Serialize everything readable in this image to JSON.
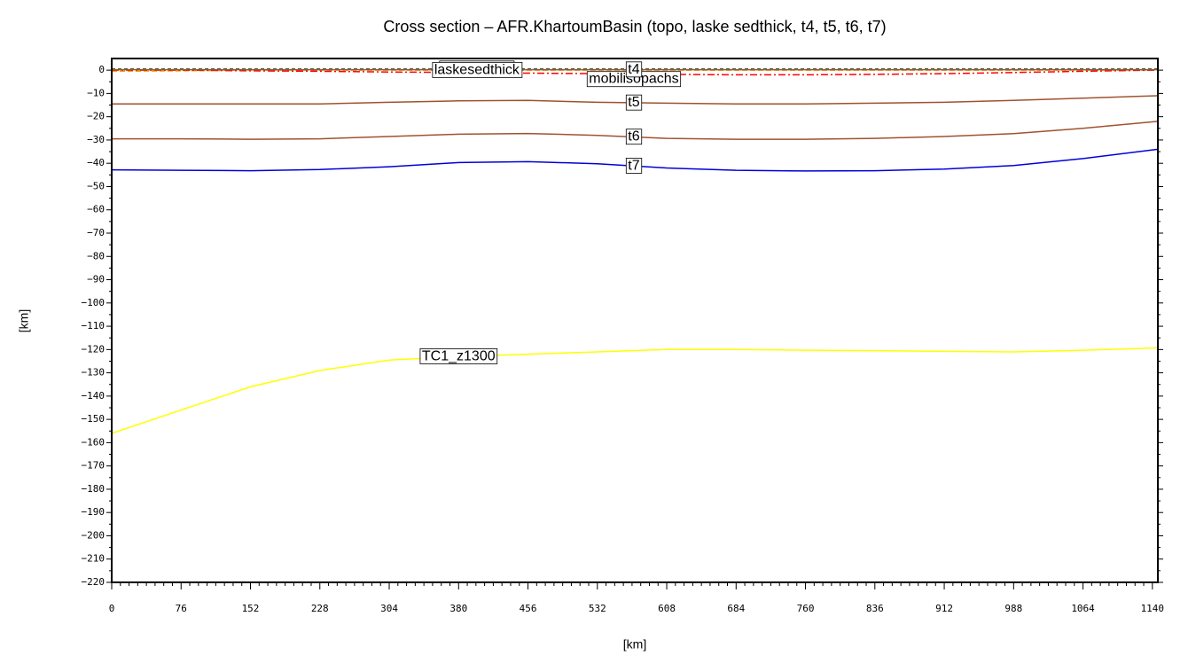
{
  "chart_data": {
    "type": "line",
    "title": "Cross section – AFR.KhartoumBasin (topo, laske sedthick, t4, t5, t6, t7)",
    "x_label": "[km]",
    "y_label": "[km]",
    "x": [
      0,
      76,
      152,
      228,
      304,
      380,
      456,
      532,
      608,
      684,
      760,
      836,
      912,
      988,
      1064,
      1146
    ],
    "series": [
      {
        "name": "topography",
        "color": "#1a7a5a",
        "dash": "4,3",
        "values": [
          0.5,
          0.5,
          0.5,
          0.5,
          0.5,
          0.6,
          0.6,
          0.5,
          0.5,
          0.5,
          0.5,
          0.5,
          0.5,
          0.5,
          0.5,
          0.6
        ]
      },
      {
        "name": "laskesedthick",
        "color": "#ff9900",
        "dash": "6,3",
        "values": [
          -0.5,
          -0.3,
          0,
          0,
          0,
          0,
          0,
          0,
          0,
          0,
          0,
          0,
          0,
          0,
          0,
          0
        ]
      },
      {
        "name": "mobilisopachs",
        "color": "#ff0000",
        "dash": "8,3,2,3",
        "values": [
          0,
          0,
          -0.3,
          -0.5,
          -0.8,
          -1,
          -1.3,
          -1.5,
          -1.8,
          -2,
          -2,
          -1.8,
          -1.5,
          -1,
          -0.5,
          0
        ]
      },
      {
        "name": "t4",
        "color": "#a0522d",
        "dash": "",
        "values": [
          0.2,
          0.2,
          0.2,
          0.2,
          0.2,
          0.2,
          0.2,
          0.2,
          0.2,
          0.2,
          0.2,
          0.2,
          0.2,
          0.2,
          0.2,
          0.2
        ]
      },
      {
        "name": "t5",
        "color": "#a0522d",
        "dash": "",
        "values": [
          -14.5,
          -14.5,
          -14.5,
          -14.5,
          -13.8,
          -13.2,
          -13,
          -13.8,
          -14.2,
          -14.5,
          -14.5,
          -14.2,
          -13.8,
          -13,
          -12,
          -11
        ]
      },
      {
        "name": "t6",
        "color": "#a0522d",
        "dash": "",
        "values": [
          -29.5,
          -29.5,
          -29.7,
          -29.5,
          -28.5,
          -27.5,
          -27.2,
          -28,
          -29.3,
          -29.7,
          -29.7,
          -29.3,
          -28.5,
          -27.3,
          -25,
          -22
        ]
      },
      {
        "name": "t7",
        "color": "#0000dd",
        "dash": "",
        "values": [
          -42.8,
          -43,
          -43.2,
          -42.7,
          -41.5,
          -39.7,
          -39.3,
          -40.2,
          -42,
          -43,
          -43.3,
          -43.2,
          -42.5,
          -41,
          -38,
          -34
        ]
      },
      {
        "name": "TC1_z1300",
        "color": "#ffff00",
        "dash": "",
        "values": [
          -156,
          -146,
          -136,
          -129,
          -124.5,
          -123,
          -122,
          -121,
          -120,
          -120,
          -120.3,
          -120.5,
          -120.8,
          -121,
          -120.3,
          -119.3
        ]
      }
    ],
    "xlim": [
      0,
      1146
    ],
    "ylim": [
      -220,
      5
    ],
    "xticks": [
      0,
      76,
      152,
      228,
      304,
      380,
      456,
      532,
      608,
      684,
      760,
      836,
      912,
      988,
      1064,
      1140
    ],
    "yticks": [
      0,
      {
        "value": -10,
        "label": "−10"
      },
      {
        "value": -20,
        "label": "−20"
      },
      {
        "value": -30,
        "label": "−30"
      },
      {
        "value": -40,
        "label": "−40"
      },
      {
        "value": -50,
        "label": "−50"
      },
      {
        "value": -60,
        "label": "−60"
      },
      {
        "value": -70,
        "label": "−70"
      },
      {
        "value": -80,
        "label": "−80"
      },
      {
        "value": -90,
        "label": "−90"
      },
      {
        "value": -100,
        "label": "−100"
      },
      {
        "value": -110,
        "label": "−110"
      },
      {
        "value": -120,
        "label": "−120"
      },
      {
        "value": -130,
        "label": "−130"
      },
      {
        "value": -140,
        "label": "−140"
      },
      {
        "value": -150,
        "label": "−150"
      },
      {
        "value": -160,
        "label": "−160"
      },
      {
        "value": -170,
        "label": "−170"
      },
      {
        "value": -180,
        "label": "−180"
      },
      {
        "value": -190,
        "label": "−190"
      },
      {
        "value": -200,
        "label": "−200"
      },
      {
        "value": -210,
        "label": "−210"
      },
      {
        "value": -220,
        "label": "−220"
      }
    ]
  }
}
